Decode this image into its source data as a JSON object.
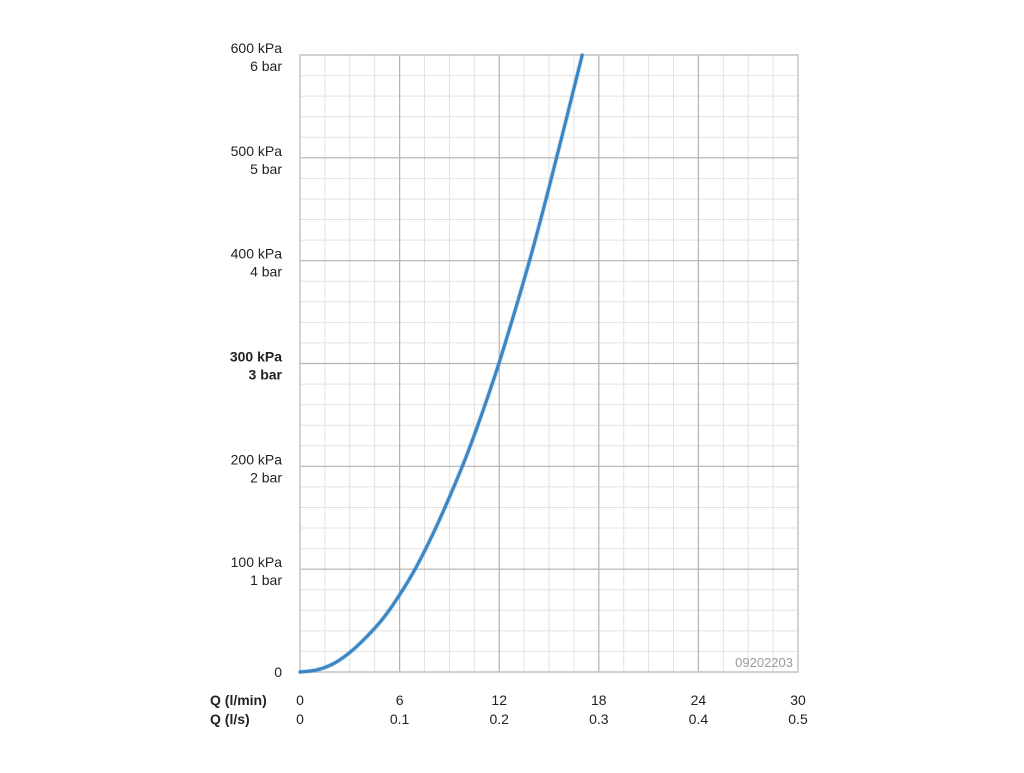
{
  "chart_data": {
    "type": "line",
    "y_axis": {
      "range": [
        0,
        600
      ],
      "ticks": [
        {
          "value": 0,
          "label1": "0",
          "label2": "",
          "bold": false
        },
        {
          "value": 100,
          "label1": "100 kPa",
          "label2": "1 bar",
          "bold": false
        },
        {
          "value": 200,
          "label1": "200 kPa",
          "label2": "2 bar",
          "bold": false
        },
        {
          "value": 300,
          "label1": "300 kPa",
          "label2": "3 bar",
          "bold": true
        },
        {
          "value": 400,
          "label1": "400 kPa",
          "label2": "4 bar",
          "bold": false
        },
        {
          "value": 500,
          "label1": "500 kPa",
          "label2": "5 bar",
          "bold": false
        },
        {
          "value": 600,
          "label1": "600 kPa",
          "label2": "6 bar",
          "bold": false
        }
      ]
    },
    "x_axis": {
      "range": [
        0,
        30
      ],
      "row1_label": "Q (l/min)",
      "row2_label": "Q (l/s)",
      "ticks": [
        {
          "value": 0,
          "label1": "0",
          "label2": "0"
        },
        {
          "value": 6,
          "label1": "6",
          "label2": "0.1"
        },
        {
          "value": 12,
          "label1": "12",
          "label2": "0.2"
        },
        {
          "value": 18,
          "label1": "18",
          "label2": "0.3"
        },
        {
          "value": 24,
          "label1": "24",
          "label2": "0.4"
        },
        {
          "value": 30,
          "label1": "30",
          "label2": "0.5"
        }
      ]
    },
    "grid": true,
    "series": [
      {
        "color": "#3b86c4",
        "points": [
          [
            0,
            0
          ],
          [
            1,
            2
          ],
          [
            2,
            8
          ],
          [
            3,
            19
          ],
          [
            4,
            34
          ],
          [
            5,
            52
          ],
          [
            6,
            75
          ],
          [
            7,
            102
          ],
          [
            8,
            134
          ],
          [
            9,
            170
          ],
          [
            10,
            209
          ],
          [
            11,
            253
          ],
          [
            12,
            301
          ],
          [
            13,
            354
          ],
          [
            14,
            410
          ],
          [
            15,
            471
          ],
          [
            16,
            535
          ],
          [
            17,
            600
          ]
        ]
      }
    ],
    "watermark": "09202203"
  },
  "colors": {
    "major_grid": "#b4b4b4",
    "minor_grid": "#e2e2e2",
    "frame": "#c8c8c8",
    "text": "#222222",
    "watermark": "#9a9a9a"
  }
}
